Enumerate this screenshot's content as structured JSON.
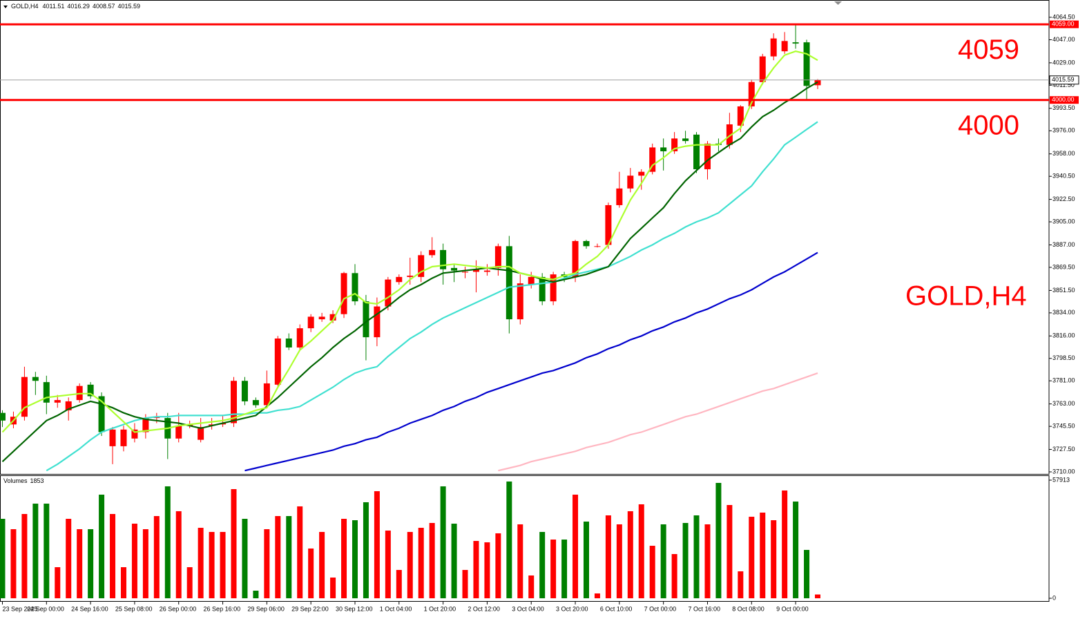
{
  "chart_data": {
    "type": "candlestick",
    "title": "GOLD,H4",
    "categories": [
      "23 Sep 2025",
      null,
      null,
      null,
      "24 Sep 00:00",
      null,
      null,
      null,
      "24 Sep 16:00",
      null,
      null,
      null,
      "25 Sep 08:00",
      null,
      null,
      null,
      "26 Sep 00:00",
      null,
      null,
      null,
      "26 Sep 16:00",
      null,
      null,
      null,
      "29 Sep 06:00",
      null,
      null,
      null,
      "29 Sep 22:00",
      null,
      null,
      null,
      "30 Sep 12:00",
      null,
      null,
      null,
      "1 Oct 04:00",
      null,
      null,
      null,
      "1 Oct 20:00",
      null,
      null,
      null,
      "2 Oct 12:00",
      null,
      null,
      null,
      "3 Oct 04:00",
      null,
      null,
      null,
      "3 Oct 20:00",
      null,
      null,
      null,
      "6 Oct 10:00",
      null,
      null,
      null,
      "7 Oct 00:00",
      null,
      null,
      null,
      "7 Oct 16:00",
      null,
      null,
      null,
      "8 Oct 08:00",
      null,
      null,
      null,
      "9 Oct 00:00",
      null,
      null
    ],
    "open": [
      3756,
      3747,
      3753,
      3784,
      3780,
      3764,
      3758,
      3766,
      3778,
      3769,
      3730,
      3730,
      3736,
      3741,
      3752,
      3752,
      3736,
      3746,
      3735,
      3746,
      3747,
      3748,
      3781,
      3766,
      3762,
      3778,
      3814,
      3807,
      3822,
      3829,
      3828,
      3833,
      3865,
      3843,
      3815,
      3839,
      3858,
      3862,
      3862,
      3879,
      3883,
      3869,
      3866,
      3866,
      3866,
      3869,
      3886,
      3829,
      3856,
      3862,
      3843,
      3864,
      3862,
      3890,
      3886,
      3887,
      3918,
      3931,
      3941,
      3944,
      3963,
      3960,
      3970,
      3973,
      3946,
      3966,
      3965,
      3980,
      3995,
      4014,
      4034,
      4038,
      4045,
      4045,
      4011.51
    ],
    "high": [
      3758,
      3757,
      3792,
      3788,
      3785,
      3770,
      3768,
      3779,
      3780,
      3772,
      3745,
      3746,
      3748,
      3755,
      3756,
      3756,
      3756,
      3750,
      3752,
      3752,
      3754,
      3784,
      3784,
      3768,
      3789,
      3816,
      3818,
      3825,
      3833,
      3834,
      3836,
      3866,
      3872,
      3848,
      3846,
      3862,
      3864,
      3877,
      3882,
      3893,
      3888,
      3872,
      3870,
      3875,
      3872,
      3888,
      3894,
      3864,
      3866,
      3865,
      3866,
      3866,
      3891,
      3891,
      3888,
      3920,
      3944,
      3947,
      3946,
      3966,
      3970,
      3975,
      3976,
      3975,
      3968,
      3970,
      3990,
      3996,
      4016,
      4036,
      4052,
      4053,
      4059,
      4047,
      4016.29
    ],
    "low": [
      3745,
      3744,
      3750,
      3770,
      3755,
      3760,
      3750,
      3764,
      3767,
      3738,
      3716,
      3726,
      3733,
      3736,
      3748,
      3720,
      3733,
      3744,
      3733,
      3743,
      3745,
      3745,
      3762,
      3760,
      3760,
      3776,
      3805,
      3805,
      3819,
      3827,
      3826,
      3830,
      3840,
      3797,
      3808,
      3836,
      3856,
      3856,
      3858,
      3877,
      3856,
      3858,
      3861,
      3850,
      3863,
      3863,
      3818,
      3825,
      3853,
      3840,
      3840,
      3858,
      3858,
      3884,
      3885,
      3884,
      3916,
      3928,
      3930,
      3942,
      3945,
      3958,
      3966,
      3943,
      3938,
      3960,
      3962,
      3975,
      3993,
      4012,
      4031,
      4036,
      4040,
      4000,
      4008.57
    ],
    "close": [
      3750,
      3753,
      3784,
      3781,
      3764,
      3766,
      3765,
      3777,
      3769,
      3741,
      3743,
      3743,
      3743,
      3752,
      3753,
      3736,
      3746,
      3747,
      3745,
      3747,
      3748,
      3781,
      3765,
      3762,
      3779,
      3814,
      3807,
      3822,
      3831,
      3831,
      3833,
      3865,
      3843,
      3815,
      3839,
      3860,
      3862,
      3863,
      3879,
      3883,
      3868,
      3867,
      3866,
      3868,
      3867,
      3886,
      3829,
      3857,
      3862,
      3843,
      3864,
      3862,
      3890,
      3886,
      3886,
      3918,
      3931,
      3941,
      3944,
      3963,
      3960,
      3970,
      3968,
      3946,
      3966,
      3965,
      3981,
      3995,
      4014,
      4034,
      4048,
      4046,
      4044,
      4011,
      4015.59
    ],
    "up_color": "#ff0000",
    "down_color": "#008000",
    "ylim": [
      3708.4,
      4076.9
    ],
    "yticks": [
      {
        "value": 4064.5,
        "label": "4064.50"
      },
      {
        "value": 4047,
        "label": "4047.00"
      },
      {
        "value": 4029,
        "label": "4029.00"
      },
      {
        "value": 4011.5,
        "label": "4011.50"
      },
      {
        "value": 3993.5,
        "label": "3993.50"
      },
      {
        "value": 3976,
        "label": "3976.00"
      },
      {
        "value": 3958,
        "label": "3958.00"
      },
      {
        "value": 3940.5,
        "label": "3940.50"
      },
      {
        "value": 3922.5,
        "label": "3922.50"
      },
      {
        "value": 3905,
        "label": "3905.00"
      },
      {
        "value": 3887,
        "label": "3887.00"
      },
      {
        "value": 3869.5,
        "label": "3869.50"
      },
      {
        "value": 3851.5,
        "label": "3851.50"
      },
      {
        "value": 3834,
        "label": "3834.00"
      },
      {
        "value": 3816,
        "label": "3816.00"
      },
      {
        "value": 3798.5,
        "label": "3798.50"
      },
      {
        "value": 3781,
        "label": "3781.00"
      },
      {
        "value": 3763,
        "label": "3763.00"
      },
      {
        "value": 3745.5,
        "label": "3745.50"
      },
      {
        "value": 3727.5,
        "label": "3727.50"
      },
      {
        "value": 3710,
        "label": "3710.00"
      }
    ],
    "moving_averages": [
      {
        "color": "#ffb6c1",
        "values": [
          null,
          null,
          null,
          null,
          null,
          null,
          null,
          null,
          null,
          null,
          null,
          null,
          null,
          null,
          null,
          null,
          null,
          null,
          null,
          null,
          null,
          null,
          null,
          null,
          null,
          null,
          null,
          null,
          null,
          null,
          null,
          null,
          null,
          null,
          null,
          null,
          null,
          null,
          null,
          null,
          null,
          null,
          null,
          null,
          null,
          3711,
          3713,
          3715,
          3718,
          3720,
          3722,
          3724,
          3726,
          3729,
          3731,
          3733,
          3736,
          3739,
          3741,
          3744,
          3747,
          3750,
          3753,
          3755,
          3758,
          3761,
          3764,
          3767,
          3770,
          3773,
          3775,
          3778,
          3781,
          3784,
          3787
        ]
      },
      {
        "color": "#0000cd",
        "values": [
          null,
          null,
          null,
          null,
          null,
          null,
          null,
          null,
          null,
          null,
          null,
          null,
          null,
          null,
          null,
          null,
          null,
          null,
          null,
          null,
          null,
          null,
          3711,
          3713,
          3715,
          3717,
          3719,
          3721,
          3723,
          3725,
          3727,
          3730,
          3732,
          3735,
          3737,
          3741,
          3744,
          3748,
          3751,
          3754,
          3758,
          3761,
          3765,
          3768,
          3772,
          3775,
          3778,
          3781,
          3784,
          3787,
          3789,
          3792,
          3795,
          3799,
          3802,
          3806,
          3809,
          3813,
          3816,
          3820,
          3823,
          3827,
          3830,
          3834,
          3837,
          3841,
          3845,
          3848,
          3852,
          3857,
          3862,
          3866,
          3871,
          3876,
          3881
        ]
      },
      {
        "color": "#40e0d0",
        "values": [
          null,
          null,
          null,
          null,
          3711,
          3716,
          3722,
          3728,
          3735,
          3741,
          3744,
          3747,
          3750,
          3752,
          3753,
          3753,
          3754,
          3754,
          3754,
          3754,
          3754,
          3755,
          3755,
          3756,
          3756,
          3758,
          3759,
          3761,
          3766,
          3771,
          3776,
          3782,
          3787,
          3790,
          3792,
          3800,
          3807,
          3814,
          3819,
          3825,
          3830,
          3834,
          3838,
          3842,
          3846,
          3850,
          3854,
          3855,
          3856,
          3857,
          3858,
          3861,
          3864,
          3866,
          3868,
          3870,
          3874,
          3878,
          3883,
          3887,
          3892,
          3896,
          3901,
          3905,
          3908,
          3912,
          3919,
          3926,
          3933,
          3944,
          3954,
          3965,
          3971,
          3977,
          3983
        ]
      },
      {
        "color": "#006400",
        "values": [
          3718,
          3726,
          3734,
          3742,
          3750,
          3754,
          3759,
          3762,
          3765,
          3763,
          3760,
          3756,
          3753,
          3751,
          3750,
          3749,
          3748,
          3746,
          3744,
          3746,
          3748,
          3750,
          3752,
          3754,
          3761,
          3768,
          3776,
          3784,
          3792,
          3799,
          3807,
          3814,
          3820,
          3827,
          3833,
          3839,
          3846,
          3852,
          3856,
          3861,
          3865,
          3866,
          3867,
          3868,
          3869,
          3868,
          3867,
          3865,
          3863,
          3860,
          3858,
          3860,
          3862,
          3864,
          3867,
          3870,
          3881,
          3892,
          3900,
          3908,
          3916,
          3927,
          3937,
          3945,
          3953,
          3959,
          3965,
          3970,
          3979,
          3987,
          3992,
          3998,
          4003,
          4009,
          4014
        ]
      },
      {
        "color": "#adff2f",
        "values": [
          3741,
          3750,
          3760,
          3764,
          3768,
          3769,
          3770,
          3771,
          3771,
          3765,
          3757,
          3749,
          3741,
          3742,
          3743,
          3744,
          3746,
          3747,
          3748,
          3749,
          3750,
          3752,
          3755,
          3758,
          3760,
          3776,
          3790,
          3805,
          3812,
          3820,
          3828,
          3845,
          3849,
          3842,
          3841,
          3846,
          3852,
          3860,
          3866,
          3870,
          3871,
          3872,
          3871,
          3870,
          3869,
          3870,
          3870,
          3865,
          3863,
          3861,
          3860,
          3863,
          3865,
          3872,
          3878,
          3887,
          3905,
          3922,
          3935,
          3949,
          3955,
          3962,
          3964,
          3965,
          3965,
          3965,
          3972,
          3978,
          3998,
          4013,
          4025,
          4035,
          4038,
          4036,
          4031
        ]
      }
    ],
    "levels": [
      {
        "value": 4059,
        "tag_label": "4059.00",
        "color": "#ff0000"
      },
      {
        "value": 4000,
        "tag_label": "4000.00",
        "color": "#ff0000"
      }
    ],
    "volume": {
      "label": "Volumes",
      "values": [
        38950,
        33870,
        41320,
        46400,
        46400,
        15240,
        38950,
        33870,
        33870,
        50800,
        41320,
        15240,
        36580,
        33870,
        40300,
        54870,
        42680,
        15240,
        34550,
        32520,
        32520,
        53510,
        38950,
        3730,
        33870,
        40300,
        40300,
        45050,
        24390,
        32520,
        10160,
        38950,
        38270,
        47080,
        52500,
        33190,
        13890,
        32520,
        34550,
        36920,
        54870,
        36580,
        13890,
        28110,
        27430,
        31840,
        57240,
        36240,
        11180,
        32520,
        28790,
        28790,
        50800,
        37600,
        2370,
        40640,
        36240,
        42680,
        46060,
        25740,
        36240,
        21680,
        36920,
        40640,
        36240,
        56560,
        45720,
        13210,
        39970,
        42000,
        38270,
        52840,
        47420,
        23710,
        1853
      ],
      "ylim": [
        0,
        57913
      ],
      "yticks": [
        0,
        57913
      ]
    }
  }
}
